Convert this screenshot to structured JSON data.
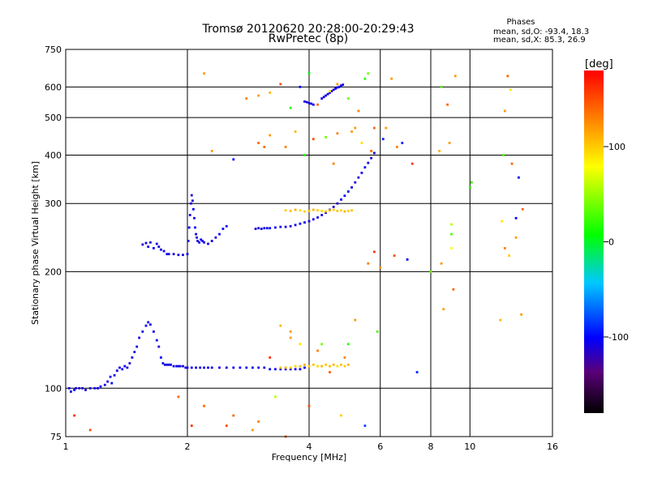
{
  "chart_data": {
    "type": "scatter",
    "title": "Tromsø 20120620 20:28:00-20:29:43",
    "subtitle": "RwPretec (8p)",
    "stats": {
      "heading": "Phases",
      "line1": "mean, sd,O: -93.4, 18.3",
      "line2": "mean, sd,X:  85.3, 26.9"
    },
    "xlabel": "Frequency [MHz]",
    "ylabel": "Stationary phase Virtual Height [km]",
    "x_scale": "log",
    "y_scale": "log",
    "xlim": [
      1,
      16
    ],
    "ylim": [
      75,
      750
    ],
    "x_ticks": [
      1,
      2,
      4,
      6,
      8,
      10,
      16
    ],
    "x_tick_labels": [
      "1",
      "2",
      "4",
      "6",
      "8",
      "10",
      "16"
    ],
    "y_ticks": [
      75,
      100,
      200,
      300,
      400,
      500,
      600,
      750
    ],
    "y_tick_labels": [
      "75",
      "100",
      "200",
      "300",
      "400",
      "500",
      "600",
      "750"
    ],
    "grid": true,
    "colorbar": {
      "label": "[deg]",
      "ticks": [
        100,
        0,
        -100
      ],
      "tick_labels": [
        "100",
        "0",
        "-100"
      ],
      "range": [
        -180,
        180
      ],
      "colors": [
        "#000000",
        "#5a0078",
        "#0000ff",
        "#00c8ff",
        "#00ff00",
        "#ffff00",
        "#ff8000",
        "#ff0000"
      ]
    },
    "series": [
      {
        "x": [
          1.02,
          1.03,
          1.05,
          1.06,
          1.08,
          1.1,
          1.12,
          1.15,
          1.18,
          1.2,
          1.22,
          1.25,
          1.27,
          1.29,
          1.3,
          1.32,
          1.34,
          1.36,
          1.38,
          1.4,
          1.42,
          1.44,
          1.46,
          1.48,
          1.5,
          1.52,
          1.55,
          1.58,
          1.6,
          1.62,
          1.65,
          1.68,
          1.7,
          1.72,
          1.74,
          1.76,
          1.78,
          1.8,
          1.82,
          1.85,
          1.88,
          1.9,
          1.92,
          1.95,
          1.98,
          2.0,
          2.05,
          2.1,
          2.15,
          2.2,
          2.25,
          2.3,
          2.4,
          2.5,
          2.6,
          2.7,
          2.8,
          2.9,
          3.0,
          3.1,
          3.2,
          3.3,
          3.4,
          3.5,
          3.6,
          3.7,
          3.8,
          3.9
        ],
        "y": [
          100,
          98,
          99,
          100,
          100,
          100,
          99,
          100,
          100,
          100,
          101,
          102,
          104,
          107,
          103,
          108,
          111,
          113,
          112,
          114,
          113,
          116,
          120,
          124,
          128,
          135,
          140,
          145,
          148,
          146,
          140,
          133,
          128,
          120,
          116,
          115,
          115,
          115,
          115,
          114,
          114,
          114,
          114,
          114,
          113,
          113,
          113,
          113,
          113,
          113,
          113,
          113,
          113,
          113,
          113,
          113,
          113,
          113,
          113,
          113,
          112,
          112,
          112,
          112,
          112,
          112,
          112,
          113
        ],
        "phase": [
          -110,
          -105,
          -100,
          -108,
          -112,
          -110,
          -108,
          -110,
          -104,
          -100,
          -106,
          -110,
          -112,
          -108,
          -100,
          -104,
          -110,
          -112,
          -105,
          -100,
          -108,
          -112,
          -106,
          -104,
          -110,
          -112,
          -108,
          -100,
          -106,
          -110,
          -104,
          -108,
          -112,
          -100,
          -105,
          -108,
          -110,
          -112,
          -106,
          -100,
          -104,
          -108,
          -110,
          -112,
          -106,
          -104,
          -108,
          -110,
          -112,
          -105,
          -104,
          -108,
          -110,
          -112,
          -106,
          -100,
          -104,
          -108,
          -110,
          -112,
          -106,
          -104,
          -108,
          -110,
          -112,
          -105,
          -100,
          -104
        ]
      },
      {
        "x": [
          1.55,
          1.58,
          1.6,
          1.62,
          1.65,
          1.68,
          1.7,
          1.72,
          1.75,
          1.78,
          1.8,
          1.85,
          1.9,
          1.95,
          2.0,
          2.01,
          2.02,
          2.03,
          2.04,
          2.05,
          2.06,
          2.07,
          2.08,
          2.09,
          2.1,
          2.11,
          2.12,
          2.14,
          2.16,
          2.18,
          2.2,
          2.25,
          2.3,
          2.35,
          2.4,
          2.45,
          2.5
        ],
        "y": [
          235,
          237,
          232,
          238,
          230,
          236,
          232,
          228,
          226,
          222,
          222,
          222,
          221,
          221,
          222,
          240,
          260,
          280,
          300,
          315,
          305,
          290,
          275,
          260,
          250,
          245,
          240,
          238,
          242,
          240,
          238,
          236,
          240,
          245,
          250,
          258,
          262
        ],
        "phase": [
          -110,
          -105,
          -108,
          -112,
          -100,
          -106,
          -110,
          -108,
          -104,
          -100,
          -110,
          -108,
          -112,
          -106,
          -104,
          -110,
          -100,
          -108,
          -112,
          -105,
          -110,
          -104,
          -108,
          -100,
          -106,
          -110,
          -112,
          -108,
          -104,
          -100,
          -110,
          -106,
          -108,
          -112,
          -104,
          -100,
          -108
        ]
      },
      {
        "x": [
          2.95,
          3.0,
          3.05,
          3.1,
          3.15,
          3.2,
          3.3,
          3.4,
          3.5,
          3.6,
          3.7,
          3.8,
          3.9,
          4.0,
          4.1,
          4.2,
          4.3,
          4.4,
          4.5,
          4.6,
          4.7,
          4.8,
          4.9,
          5.0,
          5.1,
          5.2,
          5.3,
          5.4,
          5.5,
          5.6,
          5.7,
          5.8
        ],
        "y": [
          258,
          259,
          258,
          259,
          259,
          259,
          260,
          261,
          261,
          262,
          264,
          266,
          268,
          270,
          273,
          276,
          280,
          284,
          289,
          294,
          300,
          307,
          314,
          322,
          330,
          340,
          350,
          360,
          372,
          382,
          393,
          405
        ],
        "phase": [
          -105,
          -110,
          -108,
          -112,
          -100,
          -106,
          -104,
          -108,
          -110,
          -112,
          -106,
          -100,
          -104,
          -108,
          -110,
          -112,
          -105,
          -104,
          -108,
          -110,
          -112,
          -106,
          -100,
          -104,
          -108,
          -110,
          -112,
          -106,
          -104,
          -108,
          -110,
          -112
        ]
      },
      {
        "x": [
          3.4,
          3.5,
          3.6,
          3.7,
          3.8,
          3.9,
          4.0,
          4.1,
          4.2,
          4.3,
          4.4,
          4.5,
          4.6,
          4.7,
          4.8,
          4.9,
          5.0
        ],
        "y": [
          113,
          113,
          113,
          114,
          114,
          115,
          114,
          115,
          114,
          114,
          115,
          114,
          115,
          114,
          115,
          114,
          115
        ],
        "phase": [
          105,
          110,
          100,
          95,
          105,
          110,
          100,
          105,
          95,
          110,
          100,
          105,
          110,
          95,
          105,
          100,
          110
        ]
      },
      {
        "x": [
          3.5,
          3.6,
          3.7,
          3.8,
          3.9,
          4.0,
          4.1,
          4.2,
          4.3,
          4.4,
          4.5,
          4.6,
          4.7,
          4.8,
          4.9,
          5.0,
          5.1
        ],
        "y": [
          288,
          287,
          289,
          288,
          286,
          287,
          289,
          288,
          287,
          286,
          288,
          289,
          287,
          288,
          286,
          287,
          288
        ],
        "phase": [
          100,
          105,
          110,
          95,
          100,
          105,
          110,
          100,
          95,
          105,
          110,
          100,
          105,
          95,
          110,
          100,
          105
        ]
      },
      {
        "x": [
          4.3,
          4.35,
          4.4,
          4.45,
          4.5,
          4.55,
          4.6,
          4.65,
          4.7,
          4.75,
          4.8,
          4.85
        ],
        "y": [
          560,
          565,
          570,
          575,
          580,
          585,
          590,
          594,
          598,
          600,
          605,
          608
        ],
        "phase": [
          -110,
          -105,
          -108,
          -112,
          -100,
          -106,
          -110,
          -108,
          -104,
          -100,
          -110,
          -108
        ]
      },
      {
        "x": [
          3.9,
          3.95,
          4.0,
          4.05,
          4.1
        ],
        "y": [
          550,
          548,
          545,
          543,
          540
        ],
        "phase": [
          -110,
          -105,
          -108,
          -112,
          -100
        ]
      },
      {
        "x": [
          2.5,
          2.6,
          2.9,
          3.0,
          3.2,
          3.3,
          3.5,
          3.6,
          3.8,
          4.0,
          4.2,
          4.5,
          4.8,
          5.0,
          5.2,
          5.5,
          5.6,
          5.8,
          6.0,
          6.5,
          7.0,
          8.0,
          8.5,
          9.0,
          9.0,
          9.0,
          10.0,
          12.0,
          12.2,
          12.5,
          13.0,
          13.0,
          13.5,
          2.8,
          3.0,
          3.2,
          3.4,
          3.6,
          3.8,
          4.0,
          4.2,
          4.5,
          4.7,
          5.0,
          5.3,
          5.5,
          5.8,
          6.2,
          6.8,
          8.5,
          8.8,
          12.2,
          12.6,
          3.0,
          3.2,
          3.5,
          3.7,
          4.1,
          4.4,
          4.7,
          5.1,
          5.4,
          5.7,
          6.1,
          6.6,
          8.4,
          8.9,
          12.1,
          12.7,
          13.2,
          2.2,
          2.3,
          2.6,
          3.1,
          3.9,
          4.6,
          5.2,
          5.6,
          6.4,
          7.2,
          9.2,
          10.1,
          12.4,
          1.05,
          1.15,
          1.9,
          2.05,
          2.2,
          3.4,
          3.6,
          4.3,
          4.9,
          5.9,
          7.4,
          8.6,
          9.1,
          11.9,
          13.4
        ],
        "y": [
          80,
          85,
          78,
          82,
          120,
          95,
          75,
          140,
          130,
          90,
          125,
          110,
          85,
          130,
          150,
          80,
          210,
          225,
          205,
          220,
          215,
          200,
          210,
          230,
          250,
          265,
          330,
          270,
          230,
          220,
          245,
          275,
          290,
          560,
          570,
          580,
          610,
          530,
          600,
          650,
          540,
          585,
          610,
          560,
          520,
          630,
          470,
          470,
          430,
          600,
          540,
          520,
          590,
          430,
          450,
          420,
          460,
          440,
          445,
          455,
          460,
          430,
          410,
          440,
          420,
          410,
          430,
          400,
          380,
          350,
          650,
          410,
          390,
          420,
          400,
          380,
          470,
          650,
          630,
          380,
          640,
          340,
          640,
          85,
          78,
          95,
          80,
          90,
          145,
          135,
          130,
          120,
          140,
          110,
          160,
          180,
          150,
          155
        ],
        "phase": [
          150,
          140,
          120,
          130,
          160,
          60,
          140,
          120,
          90,
          150,
          130,
          145,
          100,
          20,
          120,
          -80,
          130,
          160,
          120,
          150,
          -100,
          40,
          120,
          80,
          30,
          60,
          20,
          90,
          130,
          100,
          120,
          -100,
          140,
          130,
          120,
          110,
          150,
          20,
          -100,
          10,
          140,
          90,
          120,
          40,
          130,
          20,
          140,
          120,
          -90,
          30,
          140,
          120,
          90,
          140,
          120,
          130,
          110,
          150,
          40,
          130,
          120,
          90,
          140,
          -90,
          130,
          110,
          120,
          30,
          140,
          -100,
          120,
          120,
          -100,
          140,
          20,
          130,
          120,
          40,
          120,
          160,
          120,
          30,
          140,
          160,
          150,
          140,
          160,
          140,
          110,
          120,
          40,
          130,
          30,
          -90,
          120,
          140,
          110,
          120
        ]
      }
    ]
  }
}
